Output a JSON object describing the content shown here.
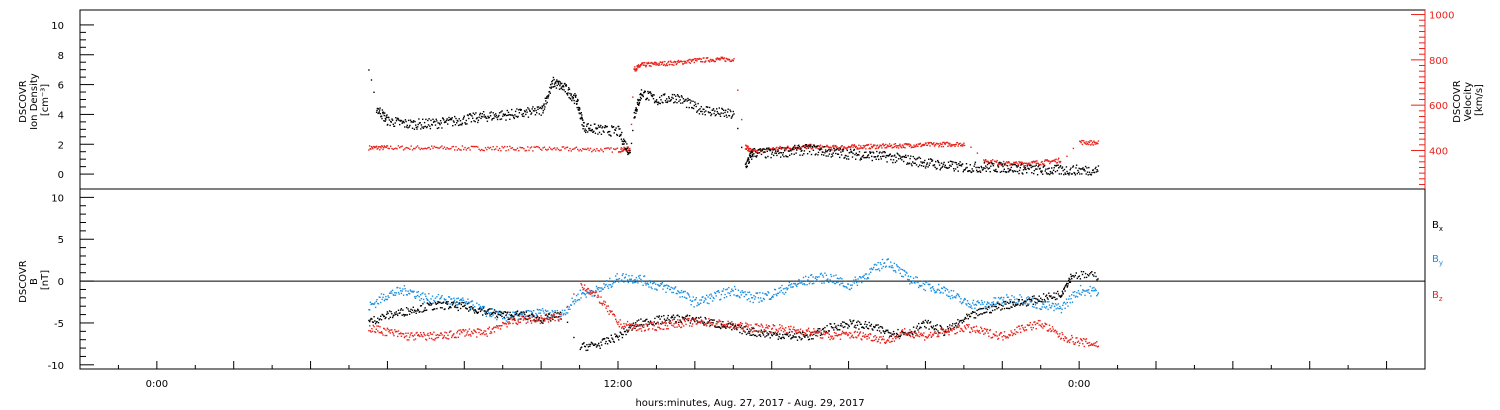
{
  "colors": {
    "black": "#000000",
    "red": "#e8231c",
    "blue": "#1a8fe0"
  },
  "xaxis": {
    "label": "hours:minutes, Aug. 27, 2017 - Aug. 29, 2017",
    "range_hours": [
      -2,
      33
    ],
    "ticks": [
      {
        "hour": 0,
        "label": "0:00"
      },
      {
        "hour": 12,
        "label": "12:00"
      },
      {
        "hour": 24,
        "label": "0:00"
      }
    ]
  },
  "panels": {
    "top": {
      "ylabel_left": [
        "DSCOVR",
        "Ion Density",
        "[cm⁻³]"
      ],
      "ylabel_right": [
        "DSCOVR",
        "Velocity",
        "[km/s]"
      ],
      "left_ylim": [
        -1,
        11
      ],
      "left_ticks": [
        0,
        2,
        4,
        6,
        8,
        10
      ],
      "right_ylim": [
        230,
        1020
      ],
      "right_ticks": [
        400,
        600,
        800,
        1000
      ]
    },
    "bottom": {
      "ylabel_left": [
        "DSCOVR",
        "B",
        "[nT]"
      ],
      "ylim": [
        -10.5,
        11
      ],
      "ticks": [
        -10,
        -5,
        0,
        5,
        10
      ],
      "legend": [
        {
          "label": "B",
          "sub": "x",
          "color": "#000000"
        },
        {
          "label": "B",
          "sub": "y",
          "color": "#1a8fe0"
        },
        {
          "label": "B",
          "sub": "z",
          "color": "#e8231c"
        }
      ]
    }
  },
  "chart_data": {
    "type": "scatter",
    "x_units": "hours since Aug. 27 0:00",
    "panels": [
      {
        "name": "plasma",
        "series": [
          {
            "name": "Ion Density",
            "axis": "left",
            "color": "#000000",
            "points": [
              [
                5.5,
                6.8
              ],
              [
                5.7,
                4.5
              ],
              [
                6,
                3.6
              ],
              [
                6.5,
                3.4
              ],
              [
                7,
                3.4
              ],
              [
                7.5,
                3.5
              ],
              [
                8,
                3.7
              ],
              [
                8.5,
                3.9
              ],
              [
                9,
                4.0
              ],
              [
                9.5,
                4.1
              ],
              [
                10,
                4.3
              ],
              [
                10.3,
                6.2
              ],
              [
                10.6,
                5.8
              ],
              [
                10.9,
                5.0
              ],
              [
                11.1,
                3.2
              ],
              [
                11.5,
                3.0
              ],
              [
                12,
                2.9
              ],
              [
                12.3,
                1.4
              ],
              [
                12.4,
                4.0
              ],
              [
                12.6,
                5.5
              ],
              [
                13,
                5.0
              ],
              [
                13.5,
                5.2
              ],
              [
                14,
                4.5
              ],
              [
                14.5,
                4.2
              ],
              [
                15,
                4.0
              ],
              [
                15.3,
                0.6
              ],
              [
                15.5,
                1.5
              ],
              [
                16,
                1.4
              ],
              [
                16.5,
                1.6
              ],
              [
                17,
                1.7
              ],
              [
                17.5,
                1.5
              ],
              [
                18,
                1.4
              ],
              [
                18.5,
                1.3
              ],
              [
                19,
                1.2
              ],
              [
                19.5,
                1.0
              ],
              [
                20,
                0.8
              ],
              [
                20.5,
                0.6
              ],
              [
                21,
                0.5
              ],
              [
                21.5,
                0.5
              ],
              [
                22,
                0.5
              ],
              [
                22.5,
                0.4
              ],
              [
                23,
                0.3
              ],
              [
                23.5,
                0.3
              ],
              [
                24,
                0.3
              ],
              [
                24.5,
                0.3
              ]
            ]
          },
          {
            "name": "Velocity",
            "axis": "right",
            "color": "#e8231c",
            "points": [
              [
                5.5,
                415
              ],
              [
                6,
                415
              ],
              [
                7,
                414
              ],
              [
                8,
                413
              ],
              [
                9,
                412
              ],
              [
                10,
                410
              ],
              [
                11,
                408
              ],
              [
                12,
                405
              ],
              [
                12.3,
                410
              ],
              [
                12.4,
                760
              ],
              [
                12.6,
                780
              ],
              [
                13,
                785
              ],
              [
                13.5,
                790
              ],
              [
                14,
                800
              ],
              [
                14.5,
                805
              ],
              [
                15,
                805
              ],
              [
                15.3,
                420
              ],
              [
                15.5,
                395
              ],
              [
                16,
                410
              ],
              [
                16.5,
                415
              ],
              [
                17,
                420
              ],
              [
                17.5,
                415
              ],
              [
                18,
                418
              ],
              [
                18.5,
                420
              ],
              [
                19,
                422
              ],
              [
                19.5,
                425
              ],
              [
                20,
                428
              ],
              [
                20.5,
                430
              ],
              [
                21,
                432
              ],
              [
                21.5,
                360
              ],
              [
                22,
                345
              ],
              [
                22.5,
                345
              ],
              [
                23,
                350
              ],
              [
                23.5,
                360
              ],
              [
                24,
                440
              ],
              [
                24.5,
                435
              ]
            ]
          }
        ]
      },
      {
        "name": "magnetic",
        "series": [
          {
            "name": "Bx",
            "color": "#000000",
            "points": [
              [
                5.5,
                -4.8
              ],
              [
                6,
                -4.0
              ],
              [
                6.5,
                -3.5
              ],
              [
                7,
                -3.0
              ],
              [
                7.5,
                -2.8
              ],
              [
                8,
                -3.0
              ],
              [
                8.5,
                -3.5
              ],
              [
                9,
                -4.0
              ],
              [
                9.5,
                -4.0
              ],
              [
                10,
                -4.5
              ],
              [
                10.5,
                -4.0
              ],
              [
                11,
                -7.8
              ],
              [
                11.5,
                -7.5
              ],
              [
                12,
                -6.5
              ],
              [
                12.5,
                -5.0
              ],
              [
                13,
                -4.6
              ],
              [
                13.5,
                -4.4
              ],
              [
                14,
                -4.5
              ],
              [
                14.5,
                -5.0
              ],
              [
                15,
                -5.5
              ],
              [
                15.5,
                -6.0
              ],
              [
                16,
                -6.3
              ],
              [
                16.5,
                -6.5
              ],
              [
                17,
                -6.5
              ],
              [
                17.5,
                -5.5
              ],
              [
                18,
                -5.0
              ],
              [
                18.5,
                -5.3
              ],
              [
                19,
                -6.0
              ],
              [
                19.5,
                -6.2
              ],
              [
                20,
                -5.0
              ],
              [
                20.5,
                -6.0
              ],
              [
                21,
                -4.5
              ],
              [
                21.5,
                -3.5
              ],
              [
                22,
                -2.8
              ],
              [
                22.5,
                -2.5
              ],
              [
                23,
                -2.0
              ],
              [
                23.5,
                -1.5
              ],
              [
                23.8,
                0.8
              ],
              [
                24.5,
                0.7
              ]
            ]
          },
          {
            "name": "By",
            "color": "#1a8fe0",
            "points": [
              [
                5.5,
                -3.0
              ],
              [
                6,
                -1.5
              ],
              [
                6.5,
                -1.0
              ],
              [
                7,
                -2.0
              ],
              [
                7.5,
                -2.2
              ],
              [
                8,
                -2.5
              ],
              [
                8.5,
                -3.5
              ],
              [
                9,
                -4.2
              ],
              [
                9.5,
                -4.0
              ],
              [
                10,
                -3.8
              ],
              [
                10.5,
                -4.0
              ],
              [
                11,
                -1.5
              ],
              [
                11.5,
                -1.0
              ],
              [
                12,
                0.5
              ],
              [
                12.5,
                0.4
              ],
              [
                13,
                -0.5
              ],
              [
                13.5,
                -1.0
              ],
              [
                14,
                -2.5
              ],
              [
                14.5,
                -1.8
              ],
              [
                15,
                -1.0
              ],
              [
                15.5,
                -2.0
              ],
              [
                16,
                -1.5
              ],
              [
                16.5,
                -0.5
              ],
              [
                17,
                0.3
              ],
              [
                17.5,
                0.5
              ],
              [
                18,
                -0.5
              ],
              [
                18.5,
                1.0
              ],
              [
                19,
                2.5
              ],
              [
                19.5,
                0.5
              ],
              [
                20,
                -0.5
              ],
              [
                20.5,
                -1.0
              ],
              [
                21,
                -2.5
              ],
              [
                21.5,
                -2.8
              ],
              [
                22,
                -2.2
              ],
              [
                22.5,
                -2.0
              ],
              [
                23,
                -2.8
              ],
              [
                23.5,
                -3.2
              ],
              [
                24,
                -1.0
              ],
              [
                24.5,
                -1.2
              ]
            ]
          },
          {
            "name": "Bz",
            "color": "#e8231c",
            "points": [
              [
                5.5,
                -5.5
              ],
              [
                6,
                -6.0
              ],
              [
                6.5,
                -6.5
              ],
              [
                7,
                -6.5
              ],
              [
                7.5,
                -6.5
              ],
              [
                8,
                -6.0
              ],
              [
                8.5,
                -6.2
              ],
              [
                9,
                -5.0
              ],
              [
                9.5,
                -4.5
              ],
              [
                10,
                -4.5
              ],
              [
                10.5,
                -4.2
              ],
              [
                11,
                -0.2
              ],
              [
                11.5,
                -2.0
              ],
              [
                12,
                -5.0
              ],
              [
                12.5,
                -5.5
              ],
              [
                13,
                -5.3
              ],
              [
                13.5,
                -5.0
              ],
              [
                14,
                -4.8
              ],
              [
                14.5,
                -4.9
              ],
              [
                15,
                -5.3
              ],
              [
                15.5,
                -5.5
              ],
              [
                16,
                -5.5
              ],
              [
                16.5,
                -5.8
              ],
              [
                17,
                -6.0
              ],
              [
                17.5,
                -6.5
              ],
              [
                18,
                -6.3
              ],
              [
                18.5,
                -6.5
              ],
              [
                19,
                -7.0
              ],
              [
                19.5,
                -6.0
              ],
              [
                20,
                -6.5
              ],
              [
                20.5,
                -6.0
              ],
              [
                21,
                -5.5
              ],
              [
                21.5,
                -6.0
              ],
              [
                22,
                -6.5
              ],
              [
                22.5,
                -5.5
              ],
              [
                23,
                -5.0
              ],
              [
                23.5,
                -6.5
              ],
              [
                24,
                -7.2
              ],
              [
                24.5,
                -7.5
              ]
            ]
          }
        ]
      }
    ]
  }
}
